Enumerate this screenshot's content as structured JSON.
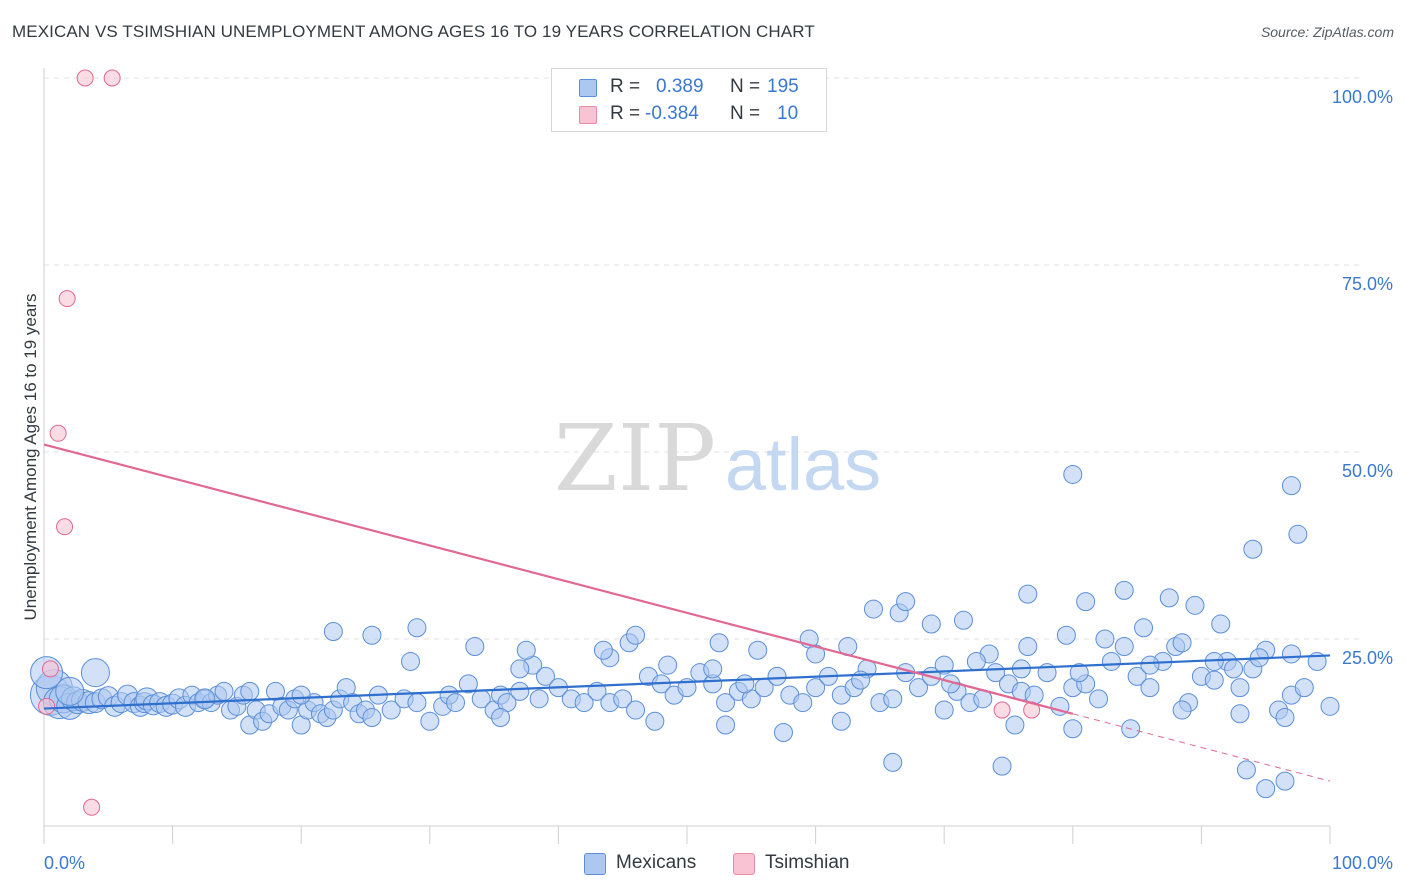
{
  "title": "MEXICAN VS TSIMSHIAN UNEMPLOYMENT AMONG AGES 16 TO 19 YEARS CORRELATION CHART",
  "source": "Source: ZipAtlas.com",
  "watermark": {
    "left": "ZIP",
    "right": "atlas"
  },
  "legend": {
    "rows": [
      {
        "name": "Mexicans",
        "r_label": "R =",
        "r_value": "0.389",
        "n_label": "N =",
        "n_value": "195",
        "fill": "#adc8f0",
        "stroke": "#5b8fd9"
      },
      {
        "name": "Tsimshian",
        "r_label": "R =",
        "r_value": "-0.384",
        "n_label": "N =",
        "n_value": "10",
        "fill": "#f8c3d2",
        "stroke": "#e98aa5"
      }
    ]
  },
  "chart_data": {
    "type": "scatter",
    "title": "MEXICAN VS TSIMSHIAN UNEMPLOYMENT AMONG AGES 16 TO 19 YEARS CORRELATION CHART",
    "xlabel": "",
    "ylabel": "Unemployment Among Ages 16 to 19 years",
    "xlim": [
      0,
      100
    ],
    "ylim": [
      0,
      100
    ],
    "x_tick_labels": [
      "0.0%",
      "100.0%"
    ],
    "y_tick_labels": [
      "25.0%",
      "50.0%",
      "75.0%",
      "100.0%"
    ],
    "y_ticks": [
      25,
      50,
      75,
      100
    ],
    "grid": true,
    "series": [
      {
        "name": "Mexicans",
        "color": "#5b8fd9",
        "fill": "#adc8f0",
        "trend": {
          "x": [
            0,
            100
          ],
          "y": [
            15.7,
            22.8
          ]
        },
        "points": [
          [
            0.5,
            17.5,
            20
          ],
          [
            0.8,
            18.5,
            18
          ],
          [
            1.2,
            16.5,
            16
          ],
          [
            1.5,
            17.0,
            14
          ],
          [
            2.0,
            16.0,
            13
          ],
          [
            2.3,
            17.0,
            12
          ],
          [
            2.6,
            16.5,
            11
          ],
          [
            3.0,
            16.8,
            11
          ],
          [
            3.5,
            16.5,
            11
          ],
          [
            4.0,
            16.5,
            10
          ],
          [
            4.5,
            17.0,
            10
          ],
          [
            5.0,
            17.3,
            10
          ],
          [
            5.5,
            16.0,
            10
          ],
          [
            6.0,
            16.5,
            10
          ],
          [
            6.5,
            17.5,
            10
          ],
          [
            7.0,
            16.5,
            10
          ],
          [
            7.5,
            16.0,
            10
          ],
          [
            7.8,
            16.5,
            10
          ],
          [
            8.0,
            17.0,
            11
          ],
          [
            8.5,
            16.2,
            10
          ],
          [
            9.0,
            16.5,
            10
          ],
          [
            9.5,
            16.0,
            10
          ],
          [
            10.0,
            16.3,
            10
          ],
          [
            10.5,
            17.0,
            10
          ],
          [
            11.0,
            16.0,
            10
          ],
          [
            11.5,
            17.5,
            9
          ],
          [
            12.0,
            16.5,
            9
          ],
          [
            12.5,
            17.0,
            9
          ],
          [
            13.0,
            16.5,
            9
          ],
          [
            13.5,
            17.5,
            9
          ],
          [
            14.0,
            18.0,
            9
          ],
          [
            14.5,
            15.5,
            9
          ],
          [
            15.0,
            16.0,
            9
          ],
          [
            15.5,
            17.5,
            9
          ],
          [
            16.0,
            13.5,
            9
          ],
          [
            16.5,
            15.5,
            9
          ],
          [
            17.0,
            14.0,
            9
          ],
          [
            17.5,
            15.0,
            9
          ],
          [
            18.0,
            18.0,
            9
          ],
          [
            18.5,
            16.0,
            9
          ],
          [
            19.0,
            15.5,
            9
          ],
          [
            19.5,
            17.0,
            9
          ],
          [
            20.0,
            13.5,
            9
          ],
          [
            20.5,
            15.5,
            9
          ],
          [
            21.0,
            16.5,
            9
          ],
          [
            21.5,
            15.0,
            9
          ],
          [
            22.0,
            14.5,
            9
          ],
          [
            22.5,
            15.5,
            9
          ],
          [
            23.0,
            17.0,
            9
          ],
          [
            23.5,
            18.5,
            9
          ],
          [
            24.0,
            16.5,
            9
          ],
          [
            24.5,
            15.0,
            9
          ],
          [
            25.0,
            15.5,
            9
          ],
          [
            25.5,
            14.5,
            9
          ],
          [
            26.0,
            17.5,
            9
          ],
          [
            27.0,
            15.5,
            9
          ],
          [
            28.0,
            17.0,
            9
          ],
          [
            29.0,
            16.5,
            9
          ],
          [
            30.0,
            14.0,
            9
          ],
          [
            31.0,
            16.0,
            9
          ],
          [
            31.5,
            17.5,
            9
          ],
          [
            32.0,
            16.5,
            9
          ],
          [
            33.0,
            19.0,
            9
          ],
          [
            34.0,
            17.0,
            9
          ],
          [
            35.0,
            15.5,
            9
          ],
          [
            35.5,
            17.5,
            9
          ],
          [
            36.0,
            16.5,
            9
          ],
          [
            37.0,
            18.0,
            9
          ],
          [
            38.0,
            21.5,
            9
          ],
          [
            38.5,
            17.0,
            9
          ],
          [
            39.0,
            20.0,
            9
          ],
          [
            40.0,
            18.5,
            9
          ],
          [
            41.0,
            17.0,
            9
          ],
          [
            42.0,
            16.5,
            9
          ],
          [
            43.0,
            18.0,
            9
          ],
          [
            44.0,
            16.5,
            9
          ],
          [
            45.0,
            17.0,
            9
          ],
          [
            46.0,
            15.5,
            9
          ],
          [
            47.0,
            20.0,
            9
          ],
          [
            48.0,
            19.0,
            9
          ],
          [
            49.0,
            17.5,
            9
          ],
          [
            50.0,
            18.5,
            9
          ],
          [
            51.0,
            20.5,
            9
          ],
          [
            52.0,
            19.0,
            9
          ],
          [
            53.0,
            16.5,
            9
          ],
          [
            54.0,
            18.0,
            9
          ],
          [
            55.0,
            17.0,
            9
          ],
          [
            56.0,
            18.5,
            9
          ],
          [
            57.0,
            20.0,
            9
          ],
          [
            58.0,
            17.5,
            9
          ],
          [
            59.0,
            16.5,
            9
          ],
          [
            60.0,
            18.5,
            9
          ],
          [
            61.0,
            20.0,
            9
          ],
          [
            62.0,
            17.5,
            9
          ],
          [
            63.0,
            18.5,
            9
          ],
          [
            64.0,
            21.0,
            9
          ],
          [
            65.0,
            16.5,
            9
          ],
          [
            66.0,
            17.0,
            9
          ],
          [
            67.0,
            20.5,
            9
          ],
          [
            68.0,
            18.5,
            9
          ],
          [
            69.0,
            20.0,
            9
          ],
          [
            70.0,
            21.5,
            9
          ],
          [
            71.0,
            18.0,
            9
          ],
          [
            72.0,
            16.5,
            9
          ],
          [
            73.0,
            17.0,
            9
          ],
          [
            74.0,
            20.5,
            9
          ],
          [
            75.0,
            19.0,
            9
          ],
          [
            76.0,
            18.0,
            9
          ],
          [
            77.0,
            17.5,
            9
          ],
          [
            78.0,
            20.5,
            9
          ],
          [
            79.0,
            16.0,
            9
          ],
          [
            80.0,
            18.5,
            9
          ],
          [
            81.0,
            19.0,
            9
          ],
          [
            82.0,
            17.0,
            9
          ],
          [
            83.0,
            22.0,
            9
          ],
          [
            84.0,
            24.0,
            9
          ],
          [
            85.0,
            20.0,
            9
          ],
          [
            86.0,
            18.5,
            9
          ],
          [
            87.0,
            22.0,
            9
          ],
          [
            88.0,
            24.0,
            9
          ],
          [
            89.0,
            16.5,
            9
          ],
          [
            90.0,
            20.0,
            9
          ],
          [
            91.0,
            19.5,
            9
          ],
          [
            92.0,
            22.0,
            9
          ],
          [
            93.0,
            18.5,
            9
          ],
          [
            94.0,
            21.0,
            9
          ],
          [
            95.0,
            23.5,
            9
          ],
          [
            96.0,
            15.5,
            9
          ],
          [
            97.0,
            17.5,
            9
          ],
          [
            98.0,
            18.5,
            9
          ],
          [
            99.0,
            22.0,
            9
          ],
          [
            25.5,
            25.5,
            9
          ],
          [
            29.0,
            26.5,
            9
          ],
          [
            33.5,
            24.0,
            9
          ],
          [
            37.5,
            23.5,
            9
          ],
          [
            45.5,
            24.5,
            9
          ],
          [
            52.5,
            24.5,
            9
          ],
          [
            55.5,
            23.5,
            9
          ],
          [
            59.5,
            25.0,
            9
          ],
          [
            62.5,
            24.0,
            9
          ],
          [
            66.5,
            28.5,
            9
          ],
          [
            69.0,
            27.0,
            9
          ],
          [
            73.5,
            23.0,
            9
          ],
          [
            76.5,
            24.0,
            9
          ],
          [
            79.5,
            25.5,
            9
          ],
          [
            82.5,
            25.0,
            9
          ],
          [
            85.5,
            26.5,
            9
          ],
          [
            88.5,
            24.5,
            9
          ],
          [
            91.5,
            27.0,
            9
          ],
          [
            94.5,
            22.5,
            9
          ],
          [
            16.0,
            18.0,
            9
          ],
          [
            20.0,
            17.5,
            9
          ],
          [
            28.5,
            22.0,
            9
          ],
          [
            37.0,
            21.0,
            9
          ],
          [
            44.0,
            22.5,
            9
          ],
          [
            48.5,
            21.5,
            9
          ],
          [
            52.0,
            21.0,
            9
          ],
          [
            54.5,
            19.0,
            9
          ],
          [
            63.5,
            19.5,
            9
          ],
          [
            70.5,
            19.0,
            9
          ],
          [
            72.5,
            22.0,
            9
          ],
          [
            76.0,
            21.0,
            9
          ],
          [
            80.5,
            20.5,
            9
          ],
          [
            86.0,
            21.5,
            9
          ],
          [
            91.0,
            22.0,
            9
          ],
          [
            92.5,
            21.0,
            9
          ],
          [
            97.0,
            23.0,
            9
          ],
          [
            35.5,
            14.5,
            9
          ],
          [
            47.5,
            14.0,
            9
          ],
          [
            53.0,
            13.5,
            9
          ],
          [
            57.5,
            12.5,
            9
          ],
          [
            62.0,
            14.0,
            9
          ],
          [
            70.0,
            15.5,
            9
          ],
          [
            75.5,
            13.5,
            9
          ],
          [
            80.0,
            13.0,
            9
          ],
          [
            84.5,
            13.0,
            9
          ],
          [
            88.5,
            15.5,
            9
          ],
          [
            93.0,
            15.0,
            9
          ],
          [
            96.5,
            14.5,
            9
          ],
          [
            100.0,
            16.0,
            9
          ],
          [
            22.5,
            26.0,
            9
          ],
          [
            43.5,
            23.5,
            9
          ],
          [
            46.0,
            25.5,
            9
          ],
          [
            60.0,
            23.0,
            9
          ],
          [
            64.5,
            29.0,
            9
          ],
          [
            67.0,
            30.0,
            9
          ],
          [
            71.5,
            27.5,
            9
          ],
          [
            76.5,
            31.0,
            9
          ],
          [
            81.0,
            30.0,
            9
          ],
          [
            84.0,
            31.5,
            9
          ],
          [
            87.5,
            30.5,
            9
          ],
          [
            89.5,
            29.5,
            9
          ],
          [
            94.0,
            37.0,
            9
          ],
          [
            97.5,
            39.0,
            9
          ],
          [
            80.0,
            47.0,
            9
          ],
          [
            97.0,
            45.5,
            9
          ],
          [
            93.5,
            7.5,
            9
          ],
          [
            95.0,
            5.0,
            9
          ],
          [
            74.5,
            8.0,
            9
          ],
          [
            66.0,
            8.5,
            9
          ],
          [
            96.5,
            6.0,
            9
          ],
          [
            4.0,
            20.5,
            14
          ],
          [
            2.0,
            18.0,
            14
          ],
          [
            0.2,
            20.5,
            16
          ],
          [
            12.5,
            17.0,
            10
          ]
        ]
      },
      {
        "name": "Tsimshian",
        "color": "#e06892",
        "fill": "#f8c3d2",
        "trend": {
          "x": [
            0,
            80
          ],
          "y": [
            51.0,
            15.0
          ]
        },
        "trend_dashed": {
          "x": [
            80,
            100
          ],
          "y": [
            15.0,
            6.0
          ]
        },
        "points": [
          [
            3.2,
            100.0
          ],
          [
            5.3,
            100.0
          ],
          [
            1.8,
            70.5
          ],
          [
            1.1,
            52.5
          ],
          [
            1.6,
            40.0
          ],
          [
            0.5,
            21.0
          ],
          [
            0.2,
            16.0
          ],
          [
            3.7,
            2.5
          ],
          [
            74.5,
            15.5
          ],
          [
            76.8,
            15.5
          ]
        ]
      }
    ]
  }
}
